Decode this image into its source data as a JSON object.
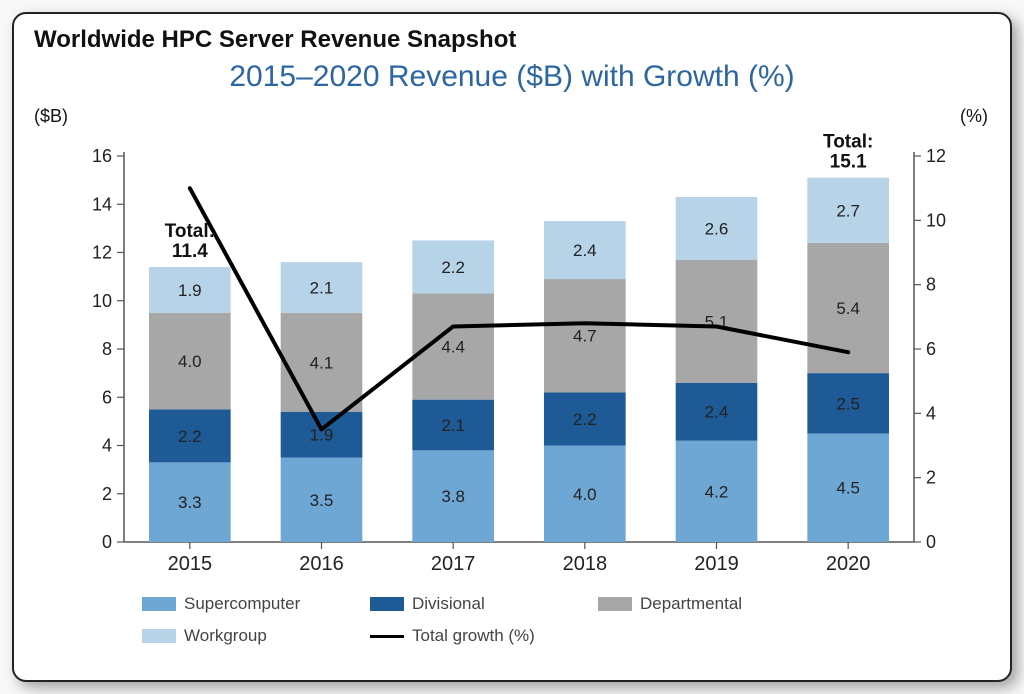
{
  "main_title": "Worldwide HPC Server Revenue Snapshot",
  "chart_title": "2015–2020 Revenue ($B) with Growth (%)",
  "chart_title_color": "#2c66a3",
  "axis_left_label": "($B)",
  "axis_right_label": "(%)",
  "chart": {
    "type": "stacked-bar+line",
    "categories": [
      "2015",
      "2016",
      "2017",
      "2018",
      "2019",
      "2020"
    ],
    "series": [
      {
        "name": "Supercomputer",
        "color": "#6ea7d4",
        "values": [
          3.3,
          3.5,
          3.8,
          4.0,
          4.2,
          4.5
        ]
      },
      {
        "name": "Divisional",
        "color": "#1e5a96",
        "values": [
          2.2,
          1.9,
          2.1,
          2.2,
          2.4,
          2.5
        ]
      },
      {
        "name": "Departmental",
        "color": "#a7a7a7",
        "values": [
          4.0,
          4.1,
          4.4,
          4.7,
          5.1,
          5.4
        ]
      },
      {
        "name": "Workgroup",
        "color": "#b7d3e8",
        "values": [
          1.9,
          2.1,
          2.2,
          2.4,
          2.6,
          2.7
        ]
      }
    ],
    "line": {
      "name": "Total growth (%)",
      "color": "#000000",
      "width": 4,
      "values": [
        11.0,
        3.5,
        6.7,
        6.8,
        6.7,
        5.9
      ]
    },
    "totals_shown": [
      {
        "index": 0,
        "label": "Total:\n11.4"
      },
      {
        "index": 5,
        "label": "Total:\n15.1"
      }
    ],
    "y_left": {
      "min": 0,
      "max": 16,
      "step": 2
    },
    "y_right": {
      "min": 0,
      "max": 12,
      "step": 2
    },
    "axis_color": "#555555",
    "grid_color": "#555555",
    "bar_width_ratio": 0.62,
    "value_label_colors": {
      "light_bg": "#222222",
      "dark_bg": "#ffffff"
    }
  },
  "legend_order": [
    "Supercomputer",
    "Divisional",
    "Departmental",
    "Workgroup",
    "Total growth (%)"
  ]
}
